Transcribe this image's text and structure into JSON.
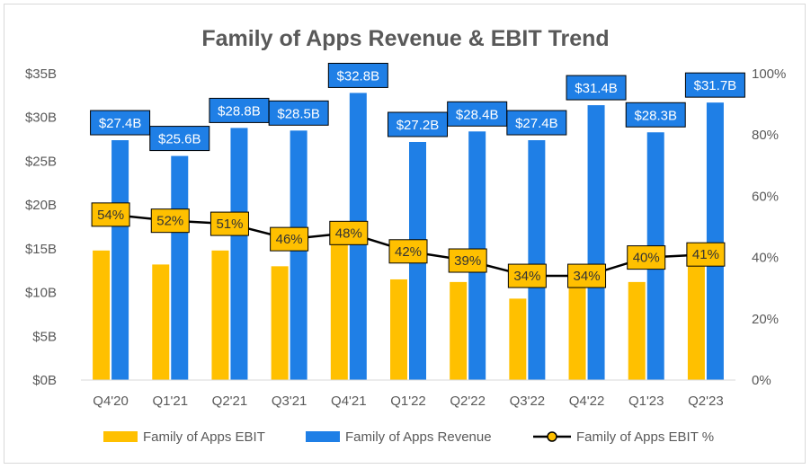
{
  "chart_data": {
    "type": "bar",
    "title": "Family of Apps Revenue & EBIT Trend",
    "categories": [
      "Q4'20",
      "Q1'21",
      "Q2'21",
      "Q3'21",
      "Q4'21",
      "Q1'22",
      "Q2'22",
      "Q3'22",
      "Q4'22",
      "Q1'23",
      "Q2'23"
    ],
    "series": [
      {
        "name": "Family of Apps EBIT",
        "type": "bar",
        "axis": "left",
        "color": "#FFC000",
        "values": [
          14.8,
          13.2,
          14.8,
          13.0,
          15.9,
          11.5,
          11.2,
          9.3,
          10.7,
          11.2,
          13.1
        ]
      },
      {
        "name": "Family of Apps Revenue",
        "type": "bar",
        "axis": "left",
        "color": "#1F7FE6",
        "values": [
          27.4,
          25.6,
          28.8,
          28.5,
          32.8,
          27.2,
          28.4,
          27.4,
          31.4,
          28.3,
          31.7
        ],
        "data_labels": [
          "$27.4B",
          "$25.6B",
          "$28.8B",
          "$28.5B",
          "$32.8B",
          "$27.2B",
          "$28.4B",
          "$27.4B",
          "$31.4B",
          "$28.3B",
          "$31.7B"
        ]
      },
      {
        "name": "Family of Apps EBIT %",
        "type": "line",
        "axis": "right",
        "color": "#000000",
        "marker_color": "#FFC000",
        "values": [
          54,
          52,
          51,
          46,
          48,
          42,
          39,
          34,
          34,
          40,
          41
        ],
        "data_labels": [
          "54%",
          "52%",
          "51%",
          "46%",
          "48%",
          "42%",
          "39%",
          "34%",
          "34%",
          "40%",
          "41%"
        ]
      }
    ],
    "y_left": {
      "ylim": [
        0,
        35
      ],
      "ticks": [
        0,
        5,
        10,
        15,
        20,
        25,
        30,
        35
      ],
      "tick_labels": [
        "$0B",
        "$5B",
        "$10B",
        "$15B",
        "$20B",
        "$25B",
        "$30B",
        "$35B"
      ]
    },
    "y_right": {
      "ylim": [
        0,
        100
      ],
      "ticks": [
        0,
        20,
        40,
        60,
        80,
        100
      ],
      "tick_labels": [
        "0%",
        "20%",
        "40%",
        "60%",
        "80%",
        "100%"
      ]
    },
    "grid": false,
    "legend_position": "bottom"
  }
}
